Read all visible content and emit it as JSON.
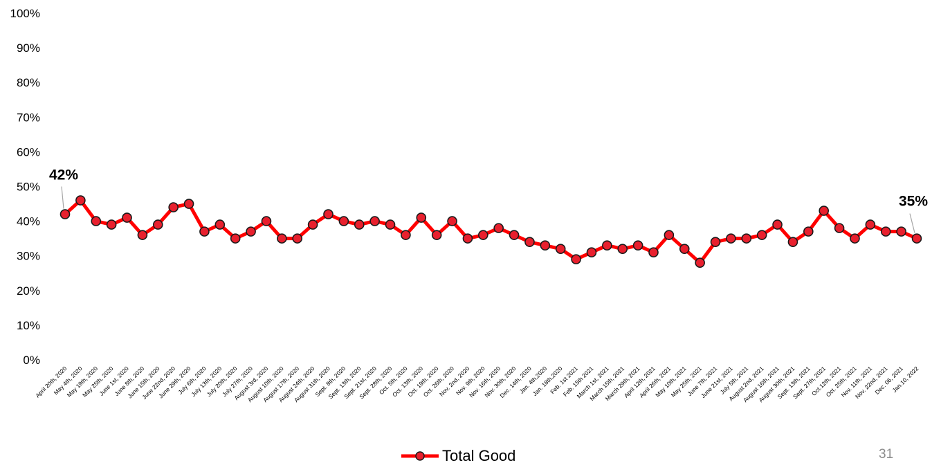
{
  "chart_data": {
    "type": "line",
    "title": "",
    "xlabel": "",
    "ylabel": "",
    "ylim": [
      0,
      1
    ],
    "y_ticks": [
      "0%",
      "10%",
      "20%",
      "30%",
      "40%",
      "50%",
      "60%",
      "70%",
      "80%",
      "90%",
      "100%"
    ],
    "grid": false,
    "legend_position": "bottom-center",
    "categories": [
      "April 20th, 2020",
      "May 4th, 2020",
      "May 19th, 2020",
      "May 25th, 2020",
      "June 1st, 2020",
      "June 8th, 2020",
      "June 15th, 2020",
      "June 22nd, 2020",
      "June 29th, 2020",
      "July 6th, 2020",
      "July 13th, 2020",
      "July 20th, 2020",
      "July 27th, 2020",
      "August 3rd, 2020",
      "August 10th, 2020",
      "August 17th, 2020",
      "August 24th, 2020",
      "August 31th, 2020",
      "Sept. 8th, 2020",
      "Sept. 13th, 2020",
      "Sept. 21st, 2020",
      "Sept. 28th, 2020",
      "Oct. 5th, 2020",
      "Oct. 13th, 2020",
      "Oct. 19th, 2020",
      "Oct. 26th, 2020",
      "Nov. 2nd, 2020",
      "Nov. 9th, 2020",
      "Nov. 16th, 2020",
      "Nov. 30th, 2020",
      "Dec. 14th, 2020",
      "Jan. 4th,2020",
      "Jan. 18th,2020",
      "Feb. 1st 2021",
      "Feb. 15th 2021",
      "March 1st, 2021",
      "March 15th, 2021",
      "March 29th, 2021",
      "April 12th, 2021",
      "April 26th, 2021",
      "May 10th, 2021",
      "May 25th, 2021",
      "June 7th, 2021",
      "June 21st, 2021",
      "July 5th, 2021",
      "August 2nd, 2021",
      "August 16th, 2021",
      "August 30th, 2021",
      "Sept. 13th, 2021",
      "Sept. 27th, 2021",
      "Oct.12th, 2021",
      "Oct. 25th, 2021",
      "Nov. 11th, 2021",
      "Nov. 22nd, 2021",
      "Dec. 06, 2021",
      "Jan.10, 2022"
    ],
    "series": [
      {
        "name": "Total Good",
        "color": "#ff0000",
        "marker_fill": "#e8202e",
        "values": [
          0.42,
          0.46,
          0.4,
          0.39,
          0.41,
          0.36,
          0.39,
          0.44,
          0.45,
          0.37,
          0.39,
          0.35,
          0.37,
          0.4,
          0.35,
          0.35,
          0.39,
          0.42,
          0.4,
          0.39,
          0.4,
          0.39,
          0.36,
          0.41,
          0.36,
          0.4,
          0.35,
          0.36,
          0.38,
          0.36,
          0.34,
          0.33,
          0.32,
          0.29,
          0.31,
          0.33,
          0.32,
          0.33,
          0.31,
          0.36,
          0.32,
          0.28,
          0.34,
          0.35,
          0.35,
          0.36,
          0.39,
          0.34,
          0.37,
          0.43,
          0.38,
          0.35,
          0.39,
          0.37,
          0.37,
          0.35
        ]
      }
    ],
    "annotations": [
      {
        "label": "42%",
        "index": 0
      },
      {
        "label": "35%",
        "index": 55
      }
    ]
  },
  "page_number": "31"
}
